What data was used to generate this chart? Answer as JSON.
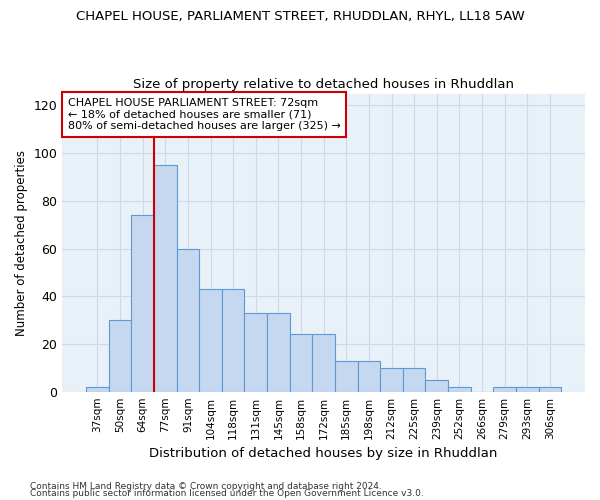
{
  "title": "CHAPEL HOUSE, PARLIAMENT STREET, RHUDDLAN, RHYL, LL18 5AW",
  "subtitle": "Size of property relative to detached houses in Rhuddlan",
  "xlabel": "Distribution of detached houses by size in Rhuddlan",
  "ylabel": "Number of detached properties",
  "categories": [
    "37sqm",
    "50sqm",
    "64sqm",
    "77sqm",
    "91sqm",
    "104sqm",
    "118sqm",
    "131sqm",
    "145sqm",
    "158sqm",
    "172sqm",
    "185sqm",
    "198sqm",
    "212sqm",
    "225sqm",
    "239sqm",
    "252sqm",
    "266sqm",
    "279sqm",
    "293sqm",
    "306sqm"
  ],
  "values": [
    2,
    30,
    74,
    95,
    60,
    43,
    43,
    33,
    33,
    24,
    24,
    13,
    13,
    10,
    10,
    5,
    2,
    0,
    2,
    2,
    2
  ],
  "bar_color": "#c5d8f0",
  "bar_edge_color": "#5b9bd5",
  "vline_x": 2.5,
  "vline_color": "#cc0000",
  "annotation_title": "CHAPEL HOUSE PARLIAMENT STREET: 72sqm",
  "annotation_line1": "← 18% of detached houses are smaller (71)",
  "annotation_line2": "80% of semi-detached houses are larger (325) →",
  "annotation_box_color": "#ffffff",
  "annotation_box_edge": "#cc0000",
  "ylim": [
    0,
    125
  ],
  "yticks": [
    0,
    20,
    40,
    60,
    80,
    100,
    120
  ],
  "grid_color": "#d0d8e8",
  "bg_color": "#e8f0f8",
  "fig_bg": "#ffffff",
  "footnote1": "Contains HM Land Registry data © Crown copyright and database right 2024.",
  "footnote2": "Contains public sector information licensed under the Open Government Licence v3.0."
}
